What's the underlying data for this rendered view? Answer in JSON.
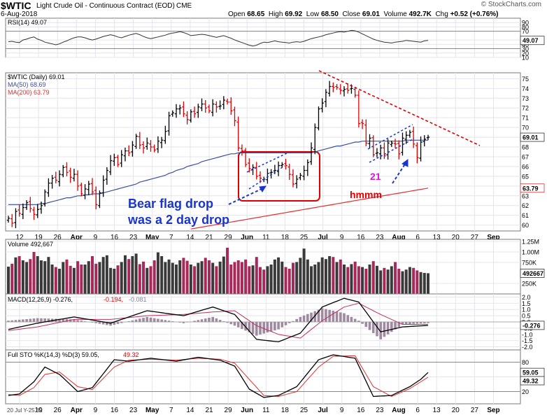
{
  "header": {
    "symbol": "$WTIC",
    "name": "Light Crude Oil - Continuous Contract (EOD)",
    "exchange": "CME",
    "date": "6-Aug-2018",
    "stats": [
      {
        "label": "Open",
        "value": "68.65"
      },
      {
        "label": "High",
        "value": "69.92"
      },
      {
        "label": "Low",
        "value": "68.50"
      },
      {
        "label": "Close",
        "value": "69.01"
      },
      {
        "label": "Volume",
        "value": "492.7K"
      },
      {
        "label": "Chg",
        "value": "+0.52 (+0.76%)"
      }
    ],
    "logo": "© StockCharts.com"
  },
  "footer_note": "20 Jul Y-25.82",
  "chart_data": [
    {
      "type": "line",
      "panel": "rsi",
      "legend": "RSI(14) 49.07",
      "ylim": [
        10,
        100
      ],
      "ticks": [
        90,
        80,
        70,
        50,
        40,
        30,
        20,
        10
      ],
      "last_label": "49.07",
      "levels": [
        70,
        30
      ],
      "values": [
        46,
        47,
        45,
        44,
        50,
        52,
        55,
        57,
        52,
        49,
        45,
        43,
        41,
        39,
        41,
        45,
        48,
        52,
        55,
        57,
        57,
        55,
        52,
        50,
        52,
        55,
        58,
        60,
        62,
        60,
        57,
        55,
        58,
        61,
        63,
        65,
        62,
        58,
        55,
        53,
        55,
        57,
        59,
        61,
        64,
        66,
        67,
        69,
        67,
        64,
        60,
        61,
        62,
        63,
        62,
        60,
        58,
        56,
        58,
        60,
        57,
        54,
        50,
        47,
        44,
        41,
        38,
        36,
        38,
        42,
        45,
        44,
        46,
        48,
        46,
        45,
        44,
        43,
        45,
        46,
        45,
        47,
        50,
        53,
        55,
        57,
        59,
        62,
        64,
        66,
        68,
        69,
        68,
        70,
        72,
        71,
        68,
        64,
        60,
        56,
        52,
        49,
        47,
        45,
        44,
        43,
        45,
        46,
        47,
        49,
        48,
        47,
        46,
        45,
        48,
        49
      ]
    },
    {
      "type": "candlestick",
      "panel": "price",
      "legend": [
        "$WTIC (Daily) 69.01",
        "MA(50) 68.69",
        "MA(200) 63.79"
      ],
      "ylim": [
        59.4,
        75.6
      ],
      "ticks": [
        75,
        74,
        73,
        72,
        71,
        70,
        69,
        68,
        67,
        66,
        65,
        64,
        63,
        62,
        61,
        60
      ],
      "last_close_label": "69.01",
      "ma200_label": "63.79",
      "x_tick_labels": [
        "12",
        "19",
        "26",
        "Apr",
        "9",
        "16",
        "23",
        "May",
        "7",
        "14",
        "21",
        "29",
        "Jun",
        "11",
        "18",
        "25",
        "Jul",
        "9",
        "16",
        "23",
        "Aug",
        "6",
        "13",
        "20",
        "27",
        "Sep"
      ],
      "closes": [
        60.7,
        60.2,
        61.4,
        61.2,
        61.8,
        62.3,
        61.7,
        61.1,
        61.6,
        62.0,
        63.4,
        64.3,
        64.8,
        64.6,
        65.2,
        65.9,
        65.4,
        64.9,
        65.2,
        64.0,
        63.2,
        63.7,
        64.2,
        63.4,
        62.1,
        63.3,
        64.6,
        65.6,
        66.6,
        66.9,
        66.2,
        67.2,
        67.6,
        67.4,
        68.2,
        69.1,
        68.2,
        67.9,
        68.4,
        68.0,
        67.7,
        68.6,
        68.7,
        69.6,
        71.2,
        71.5,
        71.9,
        72.0,
        71.4,
        70.8,
        71.6,
        71.4,
        72.1,
        72.4,
        72.0,
        71.7,
        72.4,
        72.1,
        72.2,
        72.8,
        72.6,
        71.7,
        70.7,
        67.9,
        67.6,
        66.2,
        65.8,
        65.9,
        65.0,
        64.8,
        64.7,
        65.3,
        65.4,
        65.6,
        66.1,
        66.2,
        66.1,
        65.2,
        64.2,
        64.7,
        65.1,
        65.6,
        66.4,
        67.9,
        70.0,
        71.9,
        72.5,
        73.6,
        74.2,
        74.1,
        74.1,
        73.8,
        73.9,
        73.8,
        74.0,
        73.3,
        70.4,
        70.4,
        68.4,
        68.9,
        67.2,
        67.4,
        67.9,
        67.1,
        68.4,
        68.4,
        68.3,
        67.3,
        68.9,
        69.2,
        69.5,
        68.3,
        66.9,
        68.5,
        68.8,
        69.0
      ],
      "ma50": [
        62.1,
        62.1,
        62.1,
        62.1,
        62.1,
        62.1,
        62.1,
        62.1,
        62.1,
        62.2,
        62.2,
        62.3,
        62.4,
        62.5,
        62.6,
        62.7,
        62.8,
        62.8,
        62.9,
        63.0,
        63.0,
        63.1,
        63.1,
        63.2,
        63.2,
        63.2,
        63.3,
        63.4,
        63.5,
        63.6,
        63.7,
        63.8,
        63.9,
        64.0,
        64.1,
        64.2,
        64.4,
        64.5,
        64.6,
        64.7,
        64.8,
        64.9,
        65.0,
        65.1,
        65.3,
        65.4,
        65.6,
        65.7,
        65.8,
        66.0,
        66.1,
        66.2,
        66.3,
        66.5,
        66.6,
        66.7,
        66.8,
        66.9,
        67.0,
        67.1,
        67.2,
        67.3,
        67.3,
        67.4,
        67.4,
        67.4,
        67.4,
        67.4,
        67.4,
        67.4,
        67.4,
        67.4,
        67.4,
        67.4,
        67.4,
        67.4,
        67.4,
        67.4,
        67.4,
        67.4,
        67.4,
        67.4,
        67.4,
        67.4,
        67.5,
        67.6,
        67.7,
        67.8,
        67.9,
        68.0,
        68.1,
        68.1,
        68.2,
        68.3,
        68.4,
        68.5,
        68.5,
        68.6,
        68.6,
        68.6,
        68.6,
        68.6,
        68.6,
        68.6,
        68.6,
        68.6,
        68.6,
        68.6,
        68.6,
        68.7,
        68.7,
        68.7,
        68.7,
        68.7,
        68.7,
        68.7
      ],
      "ma200_start": 59.6,
      "ma200_end": 63.79,
      "ma200_start_bar": 50
    },
    {
      "type": "bar",
      "panel": "volume",
      "legend": "Volume 492,667",
      "ylim": [
        0,
        1300000
      ],
      "tick_labels": [
        "1.25M",
        "1.00M",
        "750K",
        "250K"
      ],
      "tick_values": [
        1250000,
        1000000,
        750000,
        250000
      ],
      "last_label": "492667",
      "values": [
        650,
        720,
        870,
        900,
        800,
        760,
        830,
        1000,
        900,
        800,
        780,
        880,
        700,
        640,
        600,
        760,
        820,
        670,
        620,
        780,
        700,
        700,
        780,
        900,
        720,
        760,
        880,
        920,
        620,
        600,
        680,
        760,
        920,
        830,
        900,
        960,
        710,
        770,
        620,
        660,
        800,
        990,
        900,
        760,
        820,
        740,
        700,
        800,
        860,
        790,
        700,
        660,
        740,
        780,
        860,
        800,
        740,
        660,
        770,
        890,
        1100,
        700,
        760,
        800,
        760,
        820,
        660,
        680,
        880,
        640,
        580,
        660,
        700,
        820,
        870,
        770,
        640,
        600,
        740,
        760,
        860,
        1080,
        820,
        660,
        700,
        760,
        870,
        830,
        900,
        880,
        760,
        820,
        700,
        640,
        710,
        770,
        660,
        640,
        600,
        700,
        780,
        670,
        560,
        620,
        580,
        660,
        760,
        600,
        540,
        580,
        640,
        620,
        560,
        520,
        500,
        493
      ]
    },
    {
      "type": "line",
      "panel": "macd",
      "legend": [
        "MACD(12,26,9) -0.276,",
        "-0.194,",
        "-0.081"
      ],
      "ylim": [
        -2.25,
        2.25
      ],
      "ticks": [
        2.0,
        1.5,
        1.0,
        0.5,
        0.0,
        -0.5,
        -1.0,
        -1.5,
        -2.0
      ],
      "last_label": "-0.276",
      "keyframes": [
        [
          0,
          -0.6,
          -0.7
        ],
        [
          8,
          -0.1,
          -0.4
        ],
        [
          18,
          0.4,
          0.2
        ],
        [
          28,
          -0.1,
          0.2
        ],
        [
          38,
          0.9,
          0.5
        ],
        [
          48,
          0.5,
          0.6
        ],
        [
          56,
          1.2,
          0.8
        ],
        [
          62,
          0.6,
          0.9
        ],
        [
          68,
          -1.4,
          -0.3
        ],
        [
          74,
          -1.6,
          -1.0
        ],
        [
          80,
          -0.9,
          -1.3
        ],
        [
          86,
          1.2,
          0.1
        ],
        [
          92,
          1.9,
          1.2
        ],
        [
          96,
          1.6,
          1.5
        ],
        [
          102,
          -0.8,
          0.6
        ],
        [
          108,
          -0.4,
          -0.2
        ],
        [
          115,
          -0.28,
          -0.19
        ]
      ]
    },
    {
      "type": "line",
      "panel": "stochastic",
      "legend": [
        "Full STO %K(14,3) %D(3) 59.05,",
        "49.32"
      ],
      "ylim": [
        -5,
        105
      ],
      "ticks": [
        80,
        50,
        20
      ],
      "last_labels": [
        "59.05",
        "49.32"
      ],
      "levels": [
        80,
        20
      ],
      "keyframes": [
        [
          0,
          12,
          14
        ],
        [
          3,
          15,
          12
        ],
        [
          7,
          40,
          28
        ],
        [
          10,
          70,
          55
        ],
        [
          14,
          55,
          60
        ],
        [
          19,
          20,
          30
        ],
        [
          23,
          28,
          24
        ],
        [
          29,
          85,
          70
        ],
        [
          33,
          82,
          84
        ],
        [
          39,
          88,
          86
        ],
        [
          46,
          82,
          84
        ],
        [
          52,
          90,
          88
        ],
        [
          58,
          84,
          86
        ],
        [
          62,
          72,
          78
        ],
        [
          66,
          25,
          45
        ],
        [
          70,
          8,
          12
        ],
        [
          74,
          12,
          10
        ],
        [
          79,
          30,
          20
        ],
        [
          85,
          85,
          70
        ],
        [
          89,
          95,
          92
        ],
        [
          95,
          88,
          93
        ],
        [
          100,
          10,
          30
        ],
        [
          105,
          12,
          10
        ],
        [
          110,
          30,
          26
        ],
        [
          113,
          45,
          40
        ],
        [
          115,
          59.05,
          49.32
        ]
      ]
    }
  ],
  "annotations": {
    "note1_line1": "Bear flag drop",
    "note1_line2": "was a 2 day drop",
    "note2": "21",
    "note3": "hmmm"
  },
  "colors": {
    "up": "#000000",
    "down": "#e00000",
    "ma50": "#3a4f9c",
    "ma200": "#e03030",
    "annotation_blue": "#1a35cc",
    "annotation_red": "#e00000",
    "magenta": "#d020d0",
    "vol_down": "#a8285a",
    "hist": "#a08aa0"
  }
}
